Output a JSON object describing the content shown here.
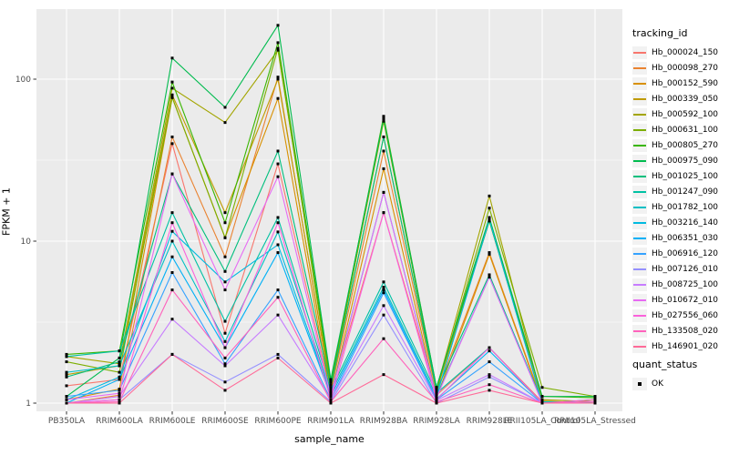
{
  "chart_data": {
    "type": "line",
    "title": "",
    "xlabel": "sample_name",
    "ylabel": "FPKM + 1",
    "y_scale": "log10",
    "y_ticks": [
      "1",
      "10",
      "100"
    ],
    "y_minor_ticks": [
      3.162,
      31.62
    ],
    "ylim": [
      0.9,
      270
    ],
    "panel_bg": "#EBEBEB",
    "grid_color": "#FFFFFF",
    "point_marker": "filled-square",
    "point_color": "#000000",
    "categories": [
      "PB350LA",
      "RRIM600LA",
      "RRIM600LE",
      "RRIM600SE",
      "RRIM600PE",
      "RRIM901LA",
      "RRIM928BA",
      "RRIM928LA",
      "RRIM928LE",
      "RRII105LA_Control",
      "RRII105LA_Stressed"
    ],
    "series": [
      {
        "name": "Hb_000024_150",
        "color": "#F8766D",
        "values": [
          1.28,
          1.4,
          40,
          2.7,
          30,
          1.15,
          15,
          1.12,
          2.2,
          1.02,
          1.0
        ]
      },
      {
        "name": "Hb_000098_270",
        "color": "#EA8331",
        "values": [
          1.0,
          1.12,
          44,
          8.0,
          103,
          1.18,
          36,
          1.15,
          8.5,
          1.02,
          1.0
        ]
      },
      {
        "name": "Hb_000152_590",
        "color": "#D89000",
        "values": [
          1.05,
          1.22,
          77,
          10.5,
          76,
          1.1,
          28,
          1.08,
          8.3,
          1.0,
          1.0
        ]
      },
      {
        "name": "Hb_000339_050",
        "color": "#C09B00",
        "values": [
          1.5,
          1.7,
          80,
          15,
          100,
          1.22,
          44,
          1.18,
          13.3,
          1.03,
          1.0
        ]
      },
      {
        "name": "Hb_000592_100",
        "color": "#A3A500",
        "values": [
          1.94,
          1.75,
          88,
          54,
          151,
          1.3,
          55,
          1.22,
          19,
          1.05,
          1.02
        ]
      },
      {
        "name": "Hb_000631_100",
        "color": "#7CAE00",
        "values": [
          1.8,
          1.55,
          77,
          10.5,
          155,
          1.25,
          57,
          1.2,
          16,
          1.25,
          1.1
        ]
      },
      {
        "name": "Hb_000805_270",
        "color": "#39B600",
        "values": [
          2.0,
          2.1,
          96,
          13,
          168,
          1.35,
          59,
          1.25,
          13.3,
          1.1,
          1.08
        ]
      },
      {
        "name": "Hb_000975_090",
        "color": "#00BB4E",
        "values": [
          1.1,
          1.9,
          135,
          67,
          215,
          1.4,
          57,
          1.25,
          14,
          1.1,
          1.1
        ]
      },
      {
        "name": "Hb_001025_100",
        "color": "#00BF7D",
        "values": [
          1.45,
          1.8,
          26,
          6.5,
          36,
          1.25,
          44,
          1.2,
          6.2,
          1.02,
          1.0
        ]
      },
      {
        "name": "Hb_001247_090",
        "color": "#00C1A3",
        "values": [
          1.94,
          2.1,
          15,
          3.2,
          14,
          1.2,
          5.6,
          1.15,
          2.2,
          1.0,
          1.0
        ]
      },
      {
        "name": "Hb_001782_100",
        "color": "#00BFC4",
        "values": [
          1.55,
          1.7,
          10,
          2.4,
          11.4,
          1.15,
          5.2,
          1.1,
          6.0,
          1.02,
          1.0
        ]
      },
      {
        "name": "Hb_003216_140",
        "color": "#00BAE0",
        "values": [
          1.05,
          1.45,
          11.5,
          5.6,
          9.5,
          1.12,
          20,
          1.1,
          13.5,
          1.0,
          1.05
        ]
      },
      {
        "name": "Hb_006351_030",
        "color": "#00B0F6",
        "values": [
          1.0,
          1.4,
          8.0,
          2.2,
          8.5,
          1.1,
          5.0,
          1.06,
          2.1,
          1.0,
          1.0
        ]
      },
      {
        "name": "Hb_006916_120",
        "color": "#35A2FF",
        "values": [
          1.1,
          1.2,
          6.4,
          1.75,
          5.0,
          1.05,
          4.8,
          1.05,
          1.8,
          1.0,
          1.0
        ]
      },
      {
        "name": "Hb_007126_010",
        "color": "#9590FF",
        "values": [
          1.0,
          1.05,
          2.0,
          1.35,
          2.0,
          1.02,
          3.5,
          1.0,
          1.45,
          1.0,
          1.0
        ]
      },
      {
        "name": "Hb_008725_100",
        "color": "#C77CFF",
        "values": [
          1.0,
          1.1,
          3.3,
          1.7,
          3.5,
          1.05,
          4.0,
          1.04,
          1.5,
          1.0,
          1.0
        ]
      },
      {
        "name": "Hb_010672_010",
        "color": "#E76BF3",
        "values": [
          1.05,
          1.15,
          26,
          5.0,
          25,
          1.1,
          20,
          1.08,
          6.0,
          1.0,
          1.0
        ]
      },
      {
        "name": "Hb_027556_060",
        "color": "#FA62DB",
        "values": [
          1.0,
          1.05,
          13,
          2.2,
          13,
          1.05,
          15,
          1.05,
          2.2,
          1.0,
          1.02
        ]
      },
      {
        "name": "Hb_133508_020",
        "color": "#FF62BC",
        "values": [
          1.0,
          1.02,
          5.0,
          1.9,
          4.5,
          1.02,
          2.5,
          1.02,
          1.3,
          1.0,
          1.05
        ]
      },
      {
        "name": "Hb_146901_020",
        "color": "#FF6A98",
        "values": [
          1.0,
          1.0,
          2.0,
          1.2,
          1.9,
          1.0,
          1.5,
          1.0,
          1.2,
          1.0,
          1.0
        ]
      }
    ],
    "legend_position": "right",
    "grid": "on"
  },
  "legend": {
    "tracking_title": "tracking_id",
    "quant_title": "quant_status",
    "quant_items": [
      {
        "label": "OK",
        "marker": "black-square"
      }
    ],
    "key_bg": "#F2F2F2"
  },
  "axes": {
    "tick_label_color": "#4D4D4D",
    "tick_mark_color": "#333333"
  }
}
